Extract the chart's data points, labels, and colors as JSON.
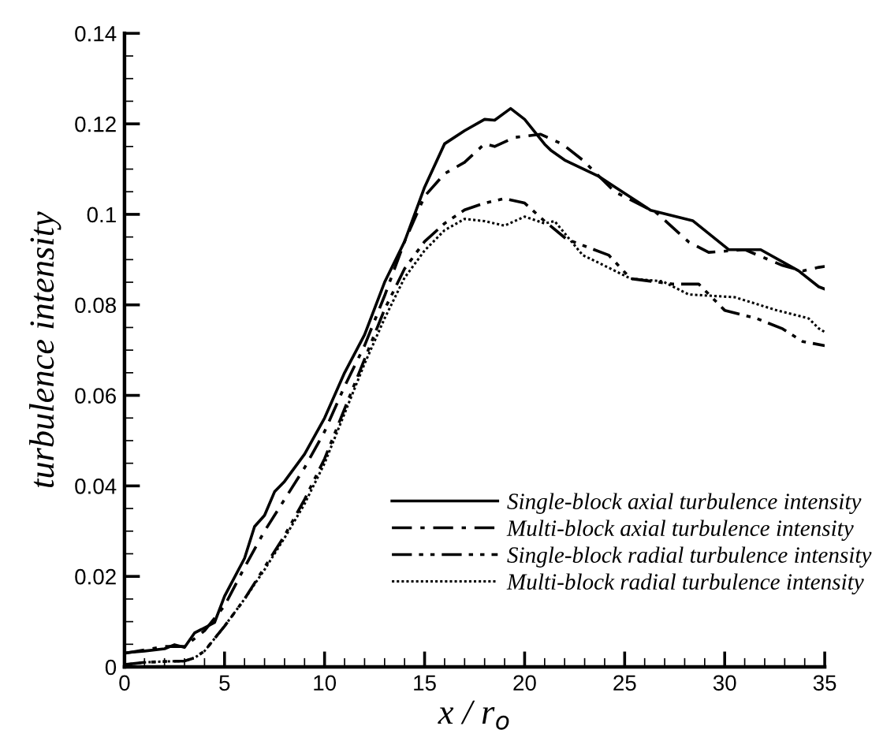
{
  "chart_data": {
    "type": "line",
    "xlabel": "x / r$_{o}$",
    "ylabel": "turbulence intensity",
    "xlim": [
      0,
      35
    ],
    "ylim": [
      0,
      0.14
    ],
    "xticks": [
      0,
      5,
      10,
      15,
      20,
      25,
      30,
      35
    ],
    "yticks": [
      0,
      0.02,
      0.04,
      0.06,
      0.08,
      0.1,
      0.12,
      0.14
    ],
    "grid": false,
    "legend": "bottom right",
    "marker": "none",
    "series": [
      {
        "name": "Single-block axial turbulence intensity",
        "color": "#000000",
        "line_style": "solid",
        "x": [
          0,
          1,
          2,
          2.5,
          3,
          3.5,
          4.5,
          5,
          6,
          6.5,
          7,
          7.5,
          8,
          9,
          10,
          11,
          12,
          13,
          14,
          15,
          16,
          17,
          18,
          18.5,
          19.3,
          20,
          21,
          21.3,
          22,
          23.7,
          24.5,
          26.3,
          28.4,
          30.2,
          31.8,
          33.7,
          34.7,
          35
        ],
        "values": [
          0.0031,
          0.0035,
          0.004,
          0.0049,
          0.0043,
          0.0075,
          0.0098,
          0.0156,
          0.024,
          0.031,
          0.0335,
          0.0387,
          0.041,
          0.047,
          0.055,
          0.065,
          0.0734,
          0.085,
          0.094,
          0.106,
          0.1156,
          0.1185,
          0.121,
          0.1208,
          0.1234,
          0.121,
          0.1155,
          0.1142,
          0.112,
          0.1084,
          0.1061,
          0.1009,
          0.0986,
          0.0922,
          0.0922,
          0.0875,
          0.084,
          0.0835
        ]
      },
      {
        "name": "Multi-block axial turbulence intensity",
        "color": "#000000",
        "line_style": "dashdot",
        "x": [
          0,
          2,
          3,
          4,
          5,
          6,
          7,
          8,
          9,
          10,
          11,
          12,
          13,
          14,
          15,
          16,
          17,
          18,
          18.5,
          19.5,
          20.8,
          21.9,
          22.9,
          24.5,
          26.6,
          28.2,
          29.2,
          31,
          32.9,
          33.9,
          34.7,
          35
        ],
        "values": [
          0.003,
          0.0045,
          0.0045,
          0.008,
          0.0135,
          0.022,
          0.03,
          0.037,
          0.044,
          0.052,
          0.062,
          0.071,
          0.082,
          0.094,
          0.104,
          0.109,
          0.1115,
          0.1156,
          0.115,
          0.117,
          0.1177,
          0.1155,
          0.112,
          0.105,
          0.1003,
          0.0939,
          0.0916,
          0.0922,
          0.0887,
          0.0875,
          0.0883,
          0.0885
        ]
      },
      {
        "name": "Single-block radial turbulence intensity",
        "color": "#000000",
        "line_style": "dashdotdot",
        "x": [
          0,
          1,
          2,
          3,
          3.5,
          4,
          5,
          6,
          7,
          8,
          9,
          10,
          11,
          12,
          13,
          14,
          15,
          16,
          17,
          18,
          19,
          20,
          21,
          22.1,
          24.2,
          25.3,
          27.4,
          28.7,
          30,
          31.6,
          32.9,
          33.9,
          35
        ],
        "values": [
          0.0005,
          0.001,
          0.0012,
          0.0013,
          0.002,
          0.0035,
          0.009,
          0.015,
          0.022,
          0.029,
          0.037,
          0.046,
          0.057,
          0.068,
          0.079,
          0.088,
          0.094,
          0.098,
          0.101,
          0.1025,
          0.1035,
          0.1025,
          0.0985,
          0.0945,
          0.091,
          0.0858,
          0.0846,
          0.0846,
          0.0788,
          0.077,
          0.0747,
          0.0719,
          0.071
        ]
      },
      {
        "name": "Multi-block radial turbulence intensity",
        "color": "#000000",
        "line_style": "dotted",
        "x": [
          0,
          1,
          2,
          3,
          3.5,
          4,
          5,
          6,
          7,
          8,
          9,
          10,
          11,
          12,
          13,
          14,
          15,
          16,
          17,
          18,
          19,
          20,
          21,
          21.5,
          22.9,
          23.7,
          25.3,
          26.9,
          28.2,
          30.5,
          32.6,
          34.2,
          34.7,
          35
        ],
        "values": [
          0.0005,
          0.001,
          0.0012,
          0.0013,
          0.002,
          0.0035,
          0.009,
          0.015,
          0.0215,
          0.0285,
          0.036,
          0.045,
          0.056,
          0.067,
          0.077,
          0.086,
          0.092,
          0.0965,
          0.099,
          0.0985,
          0.0975,
          0.0995,
          0.098,
          0.0985,
          0.091,
          0.0893,
          0.0858,
          0.0852,
          0.0823,
          0.0817,
          0.0788,
          0.077,
          0.0748,
          0.074
        ]
      }
    ]
  }
}
